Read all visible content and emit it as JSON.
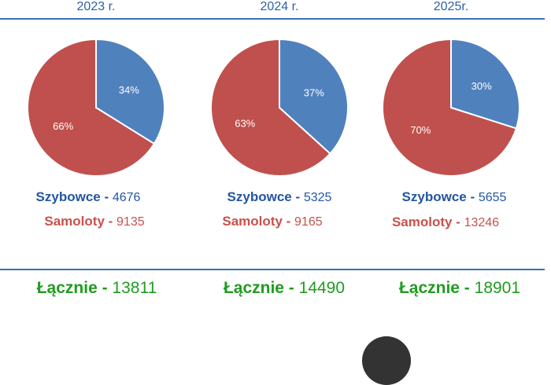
{
  "colors": {
    "szybowce": "#4f81bd",
    "samoloty": "#c0504d",
    "total": "#1f9c1f",
    "rule": "#3a70b8"
  },
  "chart_data": [
    {
      "type": "pie",
      "title": "2023 r.",
      "slices": [
        {
          "label": "Szybowce",
          "value": 4676,
          "percent_label": "34%"
        },
        {
          "label": "Samoloty",
          "value": 9135,
          "percent_label": "66%"
        }
      ],
      "total": 13811
    },
    {
      "type": "pie",
      "title": "2024 r.",
      "slices": [
        {
          "label": "Szybowce",
          "value": 5325,
          "percent_label": "37%"
        },
        {
          "label": "Samoloty",
          "value": 9165,
          "percent_label": "63%"
        }
      ],
      "total": 14490
    },
    {
      "type": "pie",
      "title": "2025r.",
      "slices": [
        {
          "label": "Szybowce",
          "value": 5655,
          "percent_label": "30%"
        },
        {
          "label": "Samoloty",
          "value": 13246,
          "percent_label": "70%"
        }
      ],
      "total": 18901
    }
  ],
  "legend": {
    "szybowce": "Szybowce - ",
    "samoloty": "Samoloty - ",
    "total": "Łącznie - "
  }
}
